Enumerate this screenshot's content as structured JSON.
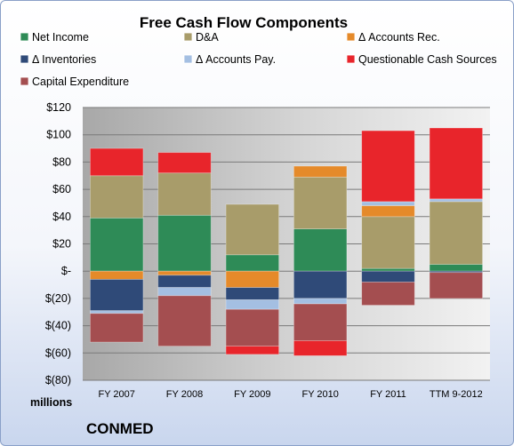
{
  "chart_data": {
    "type": "bar",
    "stacked": true,
    "title": "Free Cash Flow Components",
    "unit_label": "millions",
    "company": "CONMED",
    "categories": [
      "FY 2007",
      "FY 2008",
      "FY 2009",
      "FY 2010",
      "FY 2011",
      "TTM 9-2012"
    ],
    "ylim": [
      -80,
      120
    ],
    "yticks": [
      120,
      100,
      80,
      60,
      40,
      20,
      0,
      -20,
      -40,
      -60,
      -80
    ],
    "ytick_labels": [
      "$120",
      "$100",
      "$80",
      "$60",
      "$40",
      "$20",
      "$-",
      "$(20)",
      "$(40)",
      "$(60)",
      "$(80)"
    ],
    "grid": true,
    "legend_position": "top",
    "series": [
      {
        "name": "Net Income",
        "color": "#2e8b57",
        "values": [
          39,
          41,
          12,
          31,
          2,
          5
        ]
      },
      {
        "name": "D&A",
        "color": "#a89c6a",
        "values": [
          31,
          31,
          37,
          38,
          38,
          46
        ]
      },
      {
        "name": "Δ Accounts Rec.",
        "color": "#e58a2a",
        "values": [
          -6,
          -3,
          -12,
          8,
          8,
          0
        ]
      },
      {
        "name": "Δ Inventories",
        "color": "#2f4a78",
        "values": [
          -23,
          -9,
          -9,
          -20,
          -8,
          -1
        ]
      },
      {
        "name": "Δ Accounts Pay.",
        "color": "#a4bfe2",
        "values": [
          -2,
          -6,
          -7,
          -4,
          3,
          2
        ]
      },
      {
        "name": "Questionable Cash Sources",
        "color": "#e8252b",
        "values": [
          20,
          15,
          0,
          0,
          52,
          52
        ]
      },
      {
        "name": "Capital Expenditure",
        "color": "#a44e50",
        "values": [
          -21,
          -37,
          -27,
          -27,
          -17,
          -19
        ]
      },
      {
        "name": "Questionable Cash Sources (negative)",
        "legend": false,
        "color": "#e8252b",
        "values": [
          0,
          0,
          -6,
          -11,
          0,
          0
        ]
      }
    ]
  }
}
